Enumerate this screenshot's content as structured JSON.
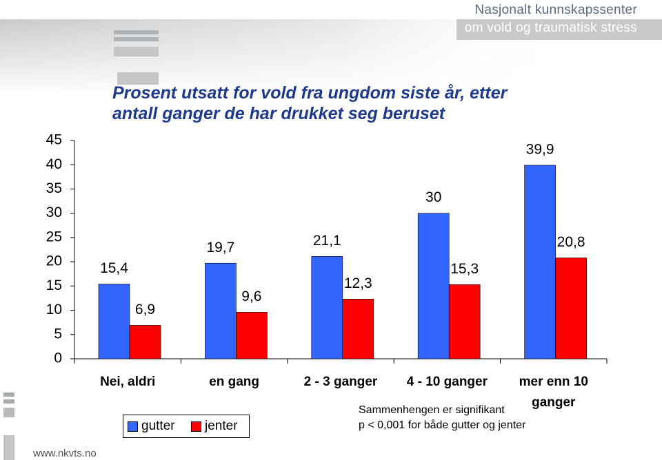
{
  "header": {
    "line1": "Nasjonalt kunnskapssenter",
    "line2": "om vold og traumatisk stress"
  },
  "footer": "www.nkvts.no",
  "chart_data": {
    "type": "bar",
    "title": "Prosent utsatt for vold fra ungdom siste år, etter antall ganger de har drukket seg beruset",
    "categories": [
      "Nei, aldri",
      "en gang",
      "2 - 3 ganger",
      "4 - 10 ganger",
      "mer enn 10 ganger"
    ],
    "series": [
      {
        "name": "gutter",
        "color": "#3366ff",
        "values": [
          15.4,
          19.7,
          21.1,
          30,
          39.9
        ],
        "value_labels": [
          "15,4",
          "19,7",
          "21,1",
          "30",
          "39,9"
        ]
      },
      {
        "name": "jenter",
        "color": "#ff0000",
        "values": [
          6.9,
          9.6,
          12.3,
          15.3,
          20.8
        ],
        "value_labels": [
          "6,9",
          "9,6",
          "12,3",
          "15,3",
          "20,8"
        ]
      }
    ],
    "ylim": [
      0,
      45
    ],
    "yticks": [
      0,
      5,
      10,
      15,
      20,
      25,
      30,
      35,
      40,
      45
    ],
    "annotation": [
      "Sammenhengen er signifikant",
      "p < 0,001 for både gutter og jenter"
    ]
  }
}
